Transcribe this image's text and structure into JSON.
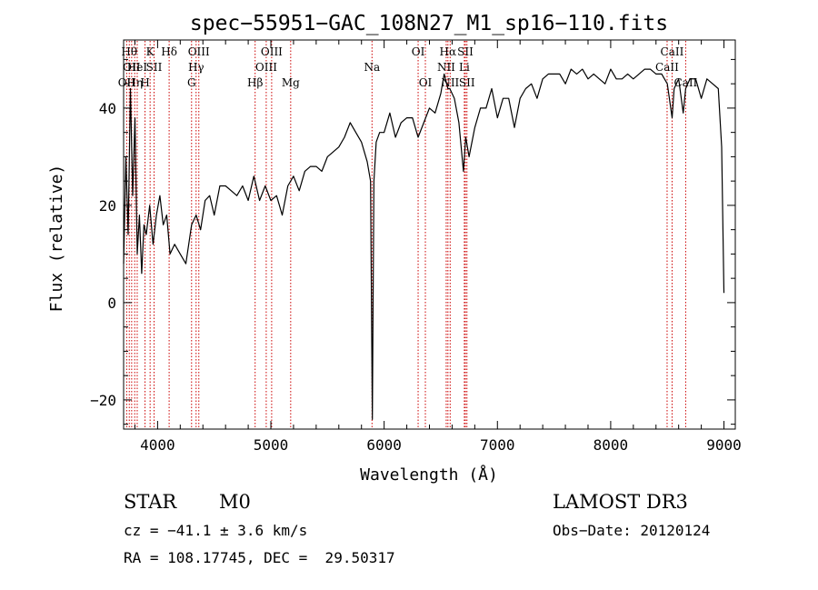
{
  "chart_data": {
    "type": "line",
    "title": "spec−55951−GAC_108N27_M1_sp16−110.fits",
    "xlabel": "Wavelength (Å)",
    "ylabel": "Flux (relative)",
    "xlim": [
      3700,
      9100
    ],
    "ylim": [
      -26,
      54
    ],
    "xticks": [
      4000,
      5000,
      6000,
      7000,
      8000,
      9000
    ],
    "xtick_labels": [
      "4000",
      "5000",
      "6000",
      "7000",
      "8000",
      "9000"
    ],
    "yticks": [
      -20,
      0,
      20,
      40
    ],
    "ytick_labels": [
      "−20",
      "0",
      "20",
      "40"
    ],
    "grid": false,
    "line_color": "#000000",
    "marker_color": "#cc0000",
    "series": [
      {
        "name": "spectrum",
        "x": [
          3700,
          3720,
          3740,
          3760,
          3780,
          3800,
          3820,
          3840,
          3860,
          3880,
          3900,
          3930,
          3960,
          3990,
          4020,
          4050,
          4080,
          4110,
          4150,
          4200,
          4250,
          4300,
          4340,
          4380,
          4420,
          4460,
          4500,
          4550,
          4600,
          4650,
          4700,
          4750,
          4800,
          4850,
          4900,
          4950,
          5000,
          5050,
          5100,
          5150,
          5200,
          5250,
          5300,
          5350,
          5400,
          5450,
          5500,
          5550,
          5600,
          5650,
          5700,
          5750,
          5800,
          5850,
          5880,
          5890,
          5896,
          5902,
          5910,
          5930,
          5960,
          6000,
          6050,
          6100,
          6150,
          6200,
          6250,
          6300,
          6350,
          6400,
          6450,
          6500,
          6530,
          6563,
          6580,
          6620,
          6660,
          6700,
          6720,
          6750,
          6800,
          6850,
          6900,
          6950,
          7000,
          7050,
          7100,
          7150,
          7200,
          7250,
          7300,
          7350,
          7400,
          7450,
          7500,
          7550,
          7600,
          7650,
          7700,
          7750,
          7800,
          7850,
          7900,
          7950,
          8000,
          8050,
          8100,
          8150,
          8200,
          8250,
          8300,
          8350,
          8400,
          8450,
          8500,
          8542,
          8560,
          8600,
          8640,
          8662,
          8700,
          8750,
          8800,
          8850,
          8900,
          8950,
          8980,
          9000
        ],
        "y": [
          8,
          30,
          14,
          44,
          22,
          38,
          10,
          18,
          6,
          16,
          14,
          20,
          12,
          18,
          22,
          16,
          18,
          10,
          12,
          10,
          8,
          16,
          18,
          15,
          21,
          22,
          18,
          24,
          24,
          23,
          22,
          24,
          21,
          26,
          21,
          24,
          21,
          22,
          18,
          24,
          26,
          23,
          27,
          28,
          28,
          27,
          30,
          31,
          32,
          34,
          37,
          35,
          33,
          29,
          25,
          -5,
          -24,
          -2,
          25,
          33,
          35,
          35,
          39,
          34,
          37,
          38,
          38,
          34,
          37,
          40,
          39,
          43,
          47,
          44,
          44,
          42,
          37,
          27,
          34,
          30,
          36,
          40,
          40,
          44,
          38,
          42,
          42,
          36,
          42,
          44,
          45,
          42,
          46,
          47,
          47,
          47,
          45,
          48,
          47,
          48,
          46,
          47,
          46,
          45,
          48,
          46,
          46,
          47,
          46,
          47,
          48,
          48,
          47,
          47,
          45,
          38,
          44,
          46,
          39,
          44,
          46,
          46,
          42,
          46,
          45,
          44,
          32,
          2
        ]
      }
    ],
    "line_markers": [
      {
        "wl": 3727,
        "label": "OII",
        "row": 3
      },
      {
        "wl": 3750,
        "label": "Hθ",
        "row": 1
      },
      {
        "wl": 3771,
        "label": "OII",
        "row": 2
      },
      {
        "wl": 3798,
        "label": "Hη",
        "row": 3
      },
      {
        "wl": 3820,
        "label": "HeI",
        "row": 2
      },
      {
        "wl": 3889,
        "label": "H",
        "row": 3
      },
      {
        "wl": 3934,
        "label": "K",
        "row": 1
      },
      {
        "wl": 3969,
        "label": "SII",
        "row": 2
      },
      {
        "wl": 4102,
        "label": "Hδ",
        "row": 1
      },
      {
        "wl": 4300,
        "label": "G",
        "row": 3
      },
      {
        "wl": 4340,
        "label": "Hγ",
        "row": 2
      },
      {
        "wl": 4364,
        "label": "OIII",
        "row": 1
      },
      {
        "wl": 4861,
        "label": "Hβ",
        "row": 3
      },
      {
        "wl": 4959,
        "label": "OIII",
        "row": 2
      },
      {
        "wl": 5007,
        "label": "OIII",
        "row": 1
      },
      {
        "wl": 5175,
        "label": "Mg",
        "row": 3
      },
      {
        "wl": 5893,
        "label": "Na",
        "row": 2
      },
      {
        "wl": 6300,
        "label": "OI",
        "row": 1
      },
      {
        "wl": 6364,
        "label": "OI",
        "row": 3
      },
      {
        "wl": 6548,
        "label": "NII",
        "row": 2
      },
      {
        "wl": 6563,
        "label": "Hα",
        "row": 1
      },
      {
        "wl": 6583,
        "label": "NII",
        "row": 3
      },
      {
        "wl": 6708,
        "label": "Li",
        "row": 2
      },
      {
        "wl": 6717,
        "label": "SII",
        "row": 1
      },
      {
        "wl": 6731,
        "label": "SII",
        "row": 3
      },
      {
        "wl": 8498,
        "label": "CaII",
        "row": 2
      },
      {
        "wl": 8542,
        "label": "CaII",
        "row": 1
      },
      {
        "wl": 8662,
        "label": "CaII",
        "row": 3
      }
    ]
  },
  "info": {
    "object_class": "STAR",
    "subclass": "M0",
    "survey": "LAMOST DR3",
    "cz": "cz = −41.1 ± 3.6 km/s",
    "obs_date": "Obs−Date: 20120124",
    "coords": "RA = 108.17745, DEC =  29.50317"
  }
}
